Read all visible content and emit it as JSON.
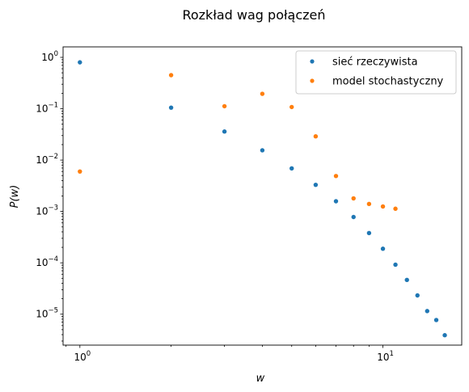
{
  "chart_data": {
    "type": "scatter",
    "title": "Rozkład wag połączeń",
    "xlabel": "w",
    "ylabel": "P(w)",
    "xscale": "log",
    "yscale": "log",
    "xlim": [
      0.88,
      18.2
    ],
    "ylim": [
      2.5e-06,
      1.6
    ],
    "x_ticks": [
      {
        "value": 1,
        "label": "10",
        "exp": "0"
      },
      {
        "value": 10,
        "label": "10",
        "exp": "1"
      }
    ],
    "y_ticks": [
      {
        "value": 1,
        "label": "10",
        "exp": "0"
      },
      {
        "value": 0.1,
        "label": "10",
        "exp": "−1"
      },
      {
        "value": 0.01,
        "label": "10",
        "exp": "−2"
      },
      {
        "value": 0.001,
        "label": "10",
        "exp": "−3"
      },
      {
        "value": 0.0001,
        "label": "10",
        "exp": "−4"
      },
      {
        "value": 1e-05,
        "label": "10",
        "exp": "−5"
      }
    ],
    "grid": false,
    "legend_position": "top-right",
    "series": [
      {
        "name": "sieć rzeczywista",
        "color": "#1f77b4",
        "x": [
          1,
          2,
          3,
          4,
          5,
          6,
          7,
          8,
          9,
          10,
          11,
          12,
          13,
          14,
          15,
          16
        ],
        "y": [
          0.8,
          0.105,
          0.036,
          0.0155,
          0.0069,
          0.0033,
          0.00158,
          0.00078,
          0.00038,
          0.000188,
          9.2e-05,
          4.65e-05,
          2.32e-05,
          1.15e-05,
          7.7e-06,
          3.9e-06
        ]
      },
      {
        "name": "model stochastyczny",
        "color": "#ff7f0e",
        "x": [
          1,
          2,
          3,
          4,
          5,
          6,
          7,
          8,
          9,
          10,
          11
        ],
        "y": [
          0.006,
          0.45,
          0.112,
          0.195,
          0.108,
          0.029,
          0.0049,
          0.0018,
          0.0014,
          0.00125,
          0.00113
        ]
      }
    ]
  }
}
